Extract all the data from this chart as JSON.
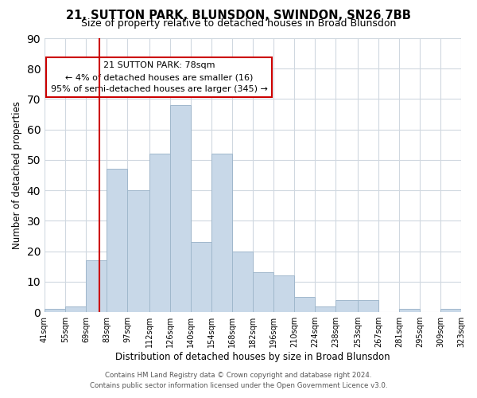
{
  "title": "21, SUTTON PARK, BLUNSDON, SWINDON, SN26 7BB",
  "subtitle": "Size of property relative to detached houses in Broad Blunsdon",
  "xlabel": "Distribution of detached houses by size in Broad Blunsdon",
  "ylabel": "Number of detached properties",
  "bar_edges": [
    41,
    55,
    69,
    83,
    97,
    112,
    126,
    140,
    154,
    168,
    182,
    196,
    210,
    224,
    238,
    253,
    267,
    281,
    295,
    309,
    323
  ],
  "bar_heights": [
    1,
    2,
    17,
    47,
    40,
    52,
    68,
    23,
    52,
    20,
    13,
    12,
    5,
    2,
    4,
    4,
    0,
    1,
    0,
    1
  ],
  "bar_color": "#c8d8e8",
  "bar_edgecolor": "#a0b8cc",
  "vline_x": 78,
  "vline_color": "#cc0000",
  "ylim": [
    0,
    90
  ],
  "yticks": [
    0,
    10,
    20,
    30,
    40,
    50,
    60,
    70,
    80,
    90
  ],
  "annotation_title": "21 SUTTON PARK: 78sqm",
  "annotation_line1": "← 4% of detached houses are smaller (16)",
  "annotation_line2": "95% of semi-detached houses are larger (345) →",
  "annotation_box_color": "#ffffff",
  "annotation_box_edgecolor": "#cc0000",
  "tick_labels": [
    "41sqm",
    "55sqm",
    "69sqm",
    "83sqm",
    "97sqm",
    "112sqm",
    "126sqm",
    "140sqm",
    "154sqm",
    "168sqm",
    "182sqm",
    "196sqm",
    "210sqm",
    "224sqm",
    "238sqm",
    "253sqm",
    "267sqm",
    "281sqm",
    "295sqm",
    "309sqm",
    "323sqm"
  ],
  "footer_line1": "Contains HM Land Registry data © Crown copyright and database right 2024.",
  "footer_line2": "Contains public sector information licensed under the Open Government Licence v3.0.",
  "background_color": "#ffffff",
  "grid_color": "#d0d8e0"
}
